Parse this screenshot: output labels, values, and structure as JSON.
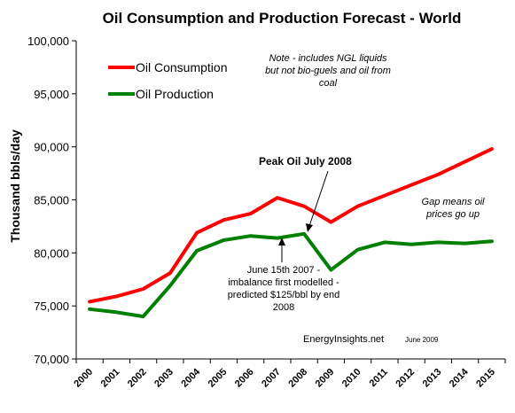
{
  "chart_data": {
    "type": "line",
    "title": "Oil Consumption and Production Forecast - World",
    "ylabel": "Thousand bbls/day",
    "xlabel": "",
    "ylim": [
      70000,
      100000
    ],
    "yticks": [
      "70,000",
      "75,000",
      "80,000",
      "85,000",
      "90,000",
      "95,000",
      "100,000"
    ],
    "yticks_values": [
      70000,
      75000,
      80000,
      85000,
      90000,
      95000,
      100000
    ],
    "grid": false,
    "legend_position": "top-left",
    "categories": [
      "2000",
      "2001",
      "2002",
      "2003",
      "2004",
      "2005",
      "2006",
      "2007",
      "2008",
      "2009",
      "2010",
      "2011",
      "2012",
      "2013",
      "2014",
      "2015"
    ],
    "series": [
      {
        "name": "Oil Consumption",
        "color": "#ff0000",
        "values": [
          75400,
          75900,
          76600,
          78100,
          81900,
          83100,
          83700,
          85200,
          84400,
          82900,
          84400,
          85400,
          86400,
          87400,
          88600,
          89800
        ]
      },
      {
        "name": "Oil Production",
        "color": "#008000",
        "values": [
          74700,
          74400,
          74000,
          76900,
          80200,
          81200,
          81600,
          81400,
          81800,
          78400,
          80300,
          81000,
          80800,
          81000,
          80900,
          81100
        ]
      }
    ],
    "annotations": {
      "note": [
        "Note - includes NGL liquids",
        "but not bio-guels and  oil from",
        "coal"
      ],
      "peak": "Peak Oil July 2008",
      "imbalance": [
        "June 15th 2007 -",
        "imbalance first modelled -",
        "predicted $125/bbl by end",
        "2008"
      ],
      "gap": [
        "Gap means oil",
        "prices go up"
      ],
      "credit": "EnergyInsights.net",
      "credit_date": "June 2009"
    }
  }
}
